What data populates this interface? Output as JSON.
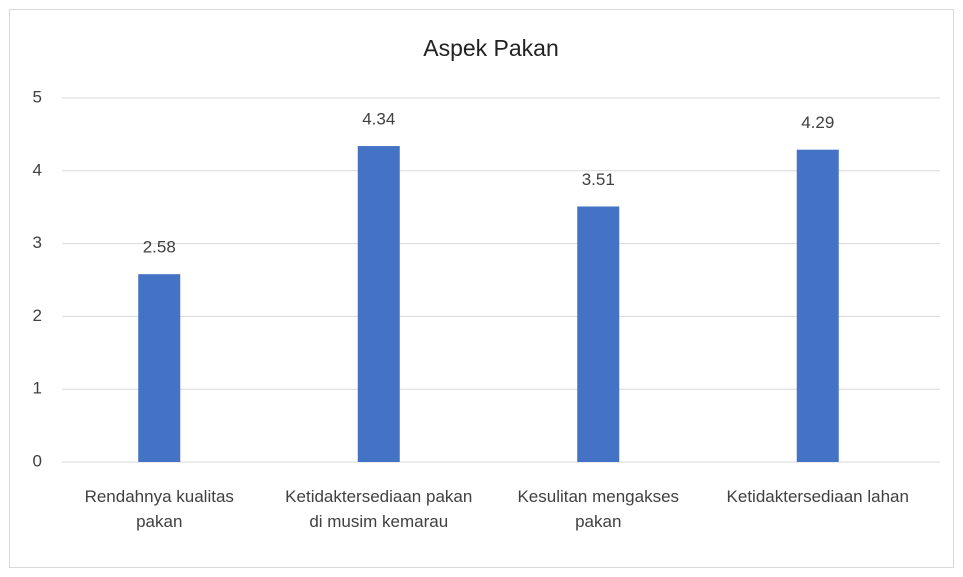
{
  "chart_data": {
    "type": "bar",
    "title": "Aspek Pakan",
    "categories": [
      "Rendahnya kualitas pakan",
      "Ketidaktersediaan pakan di musim kemarau",
      "Kesulitan mengakses pakan",
      "Ketidaktersediaan lahan"
    ],
    "values": [
      2.58,
      4.34,
      3.51,
      4.29
    ],
    "color": "#4472c4",
    "ylim": [
      0,
      5
    ],
    "yticks": [
      0,
      1,
      2,
      3,
      4,
      5
    ],
    "grid": true
  }
}
